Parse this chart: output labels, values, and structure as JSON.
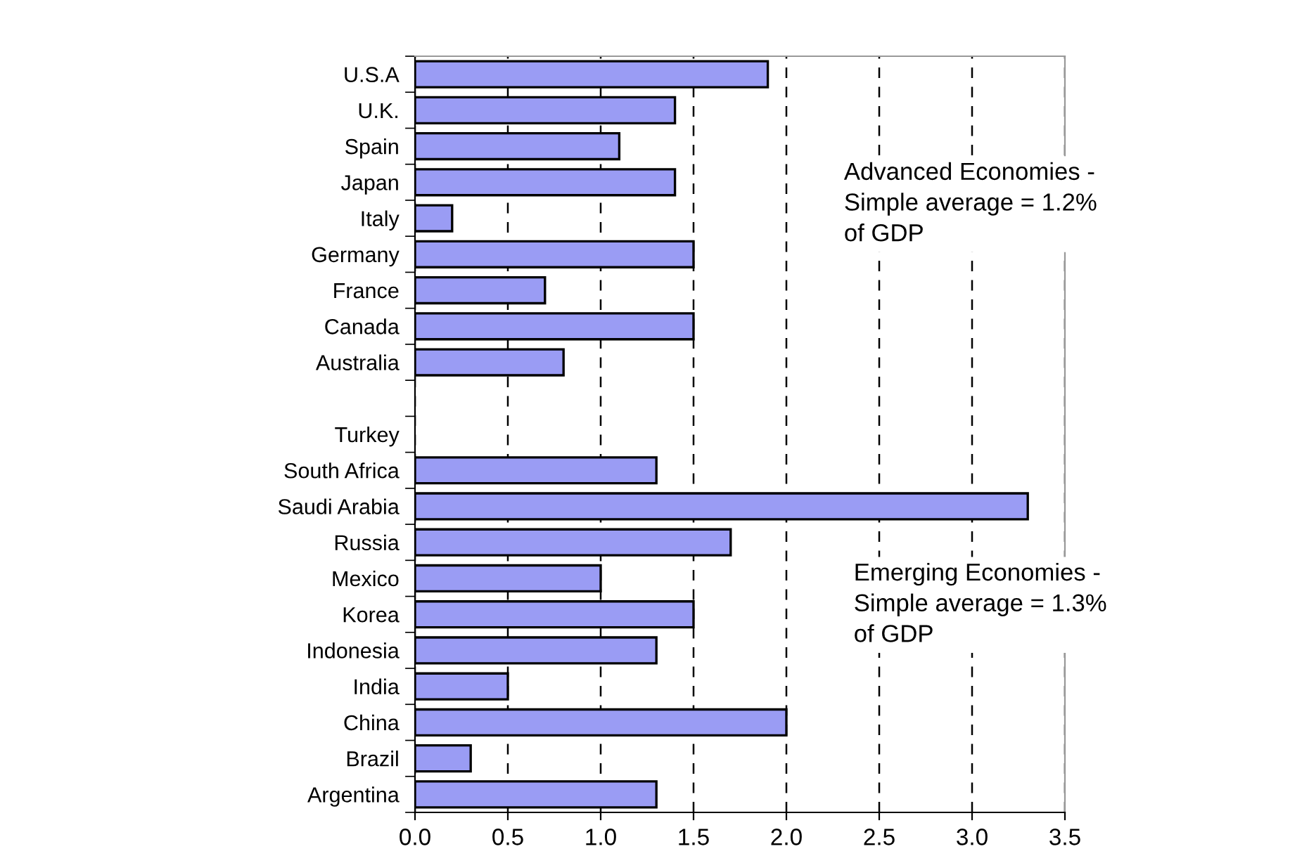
{
  "chart_data": {
    "type": "bar",
    "orientation": "horizontal",
    "categories": [
      "U.S.A",
      "U.K.",
      "Spain",
      "Japan",
      "Italy",
      "Germany",
      "France",
      "Canada",
      "Australia",
      null,
      "Turkey",
      "South Africa",
      "Saudi Arabia",
      "Russia",
      "Mexico",
      "Korea",
      "Indonesia",
      "India",
      "China",
      "Brazil",
      "Argentina"
    ],
    "values": [
      1.9,
      1.4,
      1.1,
      1.4,
      0.2,
      1.5,
      0.7,
      1.5,
      0.8,
      null,
      null,
      1.3,
      3.3,
      1.7,
      1.0,
      1.5,
      1.3,
      0.5,
      2.0,
      0.3,
      1.3
    ],
    "color": "#9a9cf4",
    "xlim": [
      0,
      3.5
    ],
    "xticks": [
      {
        "value": 0,
        "label": "0.0"
      },
      {
        "value": 0.5,
        "label": "0.5"
      },
      {
        "value": 1,
        "label": "1.0"
      },
      {
        "value": 1.5,
        "label": "1.5"
      },
      {
        "value": 2,
        "label": "2.0"
      },
      {
        "value": 2.5,
        "label": "2.5"
      },
      {
        "value": 3,
        "label": "3.0"
      },
      {
        "value": 3.5,
        "label": "3.5"
      }
    ],
    "grid": "x",
    "annotations": [
      "Advanced Economies -\nSimple average = 1.2%\nof GDP",
      "Emerging Economies -\nSimple average = 1.3%\nof GDP"
    ]
  }
}
